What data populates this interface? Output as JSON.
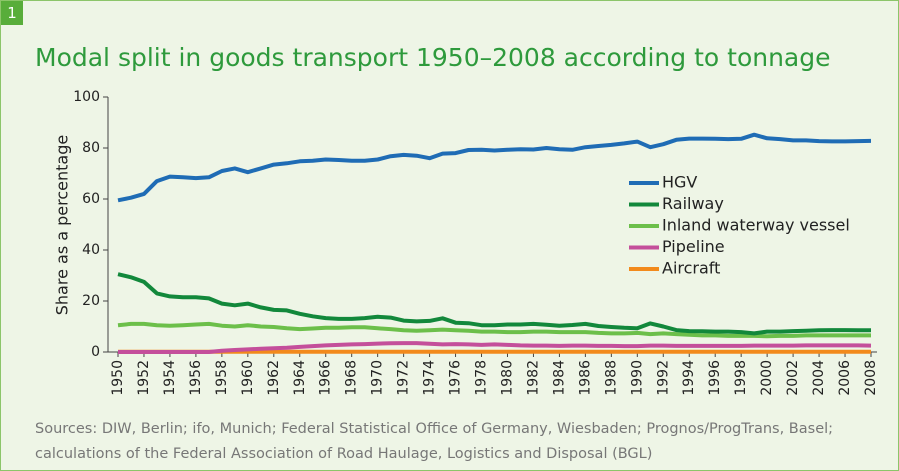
{
  "badge": "1",
  "source": "Sources: DIW, Berlin; ifo, Munich; Federal Statistical Office of Germany, Wiesbaden; Prognos/ProgTrans, Basel; calculations of the Federal Association of Road Haulage, Logistics and Disposal (BGL)",
  "chart_data": {
    "type": "line",
    "title": "Modal split in goods transport 1950–2008 according to tonnage",
    "y_label": "Share as a percentage",
    "x": [
      1950,
      1951,
      1952,
      1953,
      1954,
      1955,
      1956,
      1957,
      1958,
      1959,
      1960,
      1961,
      1962,
      1963,
      1964,
      1965,
      1966,
      1967,
      1968,
      1969,
      1970,
      1971,
      1972,
      1973,
      1974,
      1975,
      1976,
      1977,
      1978,
      1979,
      1980,
      1981,
      1982,
      1983,
      1984,
      1985,
      1986,
      1987,
      1988,
      1989,
      1990,
      1991,
      1992,
      1993,
      1994,
      1995,
      1996,
      1997,
      1998,
      1999,
      2000,
      2001,
      2002,
      2003,
      2004,
      2005,
      2006,
      2007,
      2008
    ],
    "xlim": [
      1950,
      2008
    ],
    "xticks": [
      1950,
      1952,
      1954,
      1956,
      1958,
      1960,
      1962,
      1964,
      1966,
      1968,
      1970,
      1972,
      1974,
      1976,
      1978,
      1980,
      1982,
      1984,
      1986,
      1988,
      1990,
      1992,
      1994,
      1996,
      1998,
      2000,
      2002,
      2004,
      2006,
      2008
    ],
    "ylim": [
      0,
      100
    ],
    "yticks": [
      0,
      20,
      40,
      60,
      80,
      100
    ],
    "grid": false,
    "legend": "right",
    "series": [
      {
        "name": "HGV",
        "color": "#1f6cb5",
        "values": [
          59.5,
          60.5,
          62,
          67,
          68.8,
          68.5,
          68.2,
          68.5,
          71,
          72,
          70.5,
          72,
          73.5,
          74,
          74.8,
          75,
          75.5,
          75.3,
          75,
          75,
          75.5,
          76.8,
          77.3,
          77,
          76,
          77.8,
          78,
          79.2,
          79.3,
          79,
          79.3,
          79.5,
          79.4,
          80,
          79.5,
          79.3,
          80.3,
          80.8,
          81.2,
          81.8,
          82.5,
          80.3,
          81.5,
          83.2,
          83.7,
          83.7,
          83.6,
          83.5,
          83.6,
          85.2,
          83.8,
          83.5,
          83,
          83,
          82.7,
          82.6,
          82.6,
          82.7,
          82.8
        ]
      },
      {
        "name": "Railway",
        "color": "#12883b",
        "values": [
          30.5,
          29.3,
          27.5,
          23,
          21.8,
          21.5,
          21.5,
          21,
          19,
          18.3,
          19,
          17.5,
          16.5,
          16.3,
          15,
          14,
          13.3,
          13,
          13,
          13.3,
          13.8,
          13.5,
          12.3,
          12,
          12.2,
          13.2,
          11.5,
          11.3,
          10.5,
          10.5,
          10.8,
          10.8,
          11,
          10.7,
          10.3,
          10.6,
          11,
          10.2,
          9.8,
          9.5,
          9.3,
          11.2,
          10,
          8.6,
          8.2,
          8.1,
          8,
          8,
          7.8,
          7.3,
          8,
          8,
          8.2,
          8.3,
          8.5,
          8.6,
          8.6,
          8.5,
          8.5
        ]
      },
      {
        "name": "Inland waterway vessel",
        "color": "#6cbf4a",
        "values": [
          10.5,
          11,
          11,
          10.5,
          10.3,
          10.5,
          10.8,
          11,
          10.3,
          10,
          10.5,
          10,
          9.8,
          9.3,
          9,
          9.2,
          9.5,
          9.5,
          9.7,
          9.7,
          9.3,
          9,
          8.5,
          8.3,
          8.5,
          8.8,
          8.5,
          8.3,
          8,
          8,
          7.8,
          7.8,
          8,
          8,
          7.8,
          7.8,
          7.8,
          7.5,
          7.3,
          7.3,
          7.5,
          7,
          7.3,
          7,
          6.8,
          6.5,
          6.5,
          6.3,
          6.3,
          6.3,
          6.2,
          6.3,
          6.3,
          6.5,
          6.5,
          6.5,
          6.5,
          6.5,
          6.5
        ]
      },
      {
        "name": "Pipeline",
        "color": "#c44f9b",
        "values": [
          0,
          0,
          0,
          0,
          0,
          0,
          0,
          0,
          0.5,
          0.8,
          1,
          1.3,
          1.5,
          1.7,
          2,
          2.3,
          2.6,
          2.8,
          3,
          3.1,
          3.3,
          3.4,
          3.5,
          3.5,
          3.2,
          3,
          3.1,
          3,
          2.8,
          3,
          2.8,
          2.6,
          2.5,
          2.5,
          2.4,
          2.5,
          2.5,
          2.4,
          2.4,
          2.3,
          2.3,
          2.5,
          2.5,
          2.4,
          2.4,
          2.4,
          2.4,
          2.4,
          2.4,
          2.5,
          2.5,
          2.5,
          2.5,
          2.6,
          2.6,
          2.6,
          2.6,
          2.6,
          2.5
        ]
      },
      {
        "name": "Aircraft",
        "color": "#f28a1c",
        "values": [
          0.1,
          0.1,
          0.1,
          0.1,
          0.1,
          0.1,
          0.1,
          0.1,
          0.1,
          0.1,
          0.1,
          0.1,
          0.1,
          0.1,
          0.1,
          0.1,
          0.1,
          0.1,
          0.1,
          0.1,
          0.1,
          0.1,
          0.1,
          0.1,
          0.1,
          0.1,
          0.1,
          0.1,
          0.1,
          0.1,
          0.1,
          0.1,
          0.1,
          0.1,
          0.1,
          0.1,
          0.1,
          0.1,
          0.1,
          0.1,
          0.1,
          0.1,
          0.1,
          0.1,
          0.1,
          0.1,
          0.1,
          0.1,
          0.1,
          0.1,
          0.1,
          0.1,
          0.1,
          0.1,
          0.1,
          0.1,
          0.1,
          0.1,
          0.1
        ]
      }
    ]
  }
}
